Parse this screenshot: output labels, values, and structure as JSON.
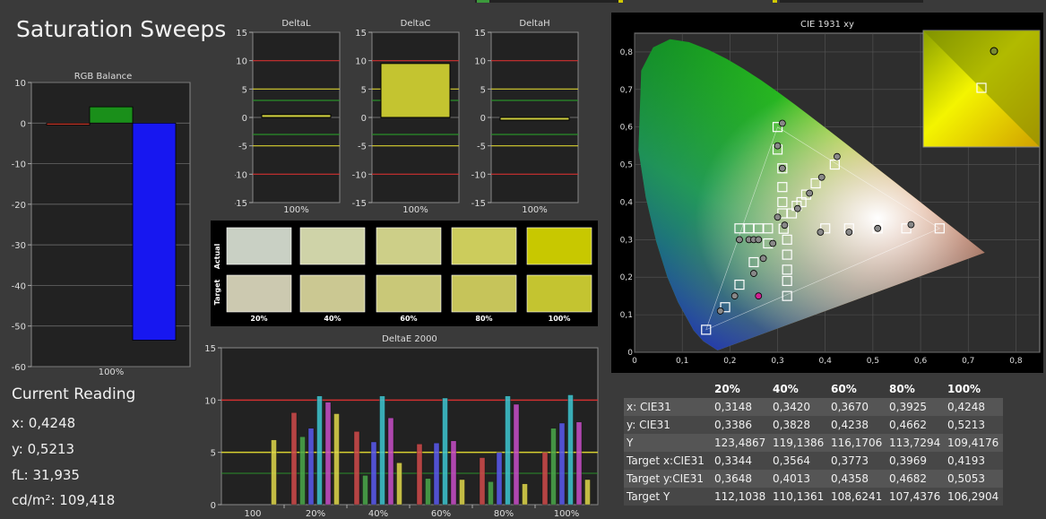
{
  "title": "Saturation Sweeps",
  "rgb_balance": {
    "title": "RGB Balance",
    "ticks": [
      "10",
      "0",
      "-10",
      "-20",
      "-30",
      "-40",
      "-50",
      "-60"
    ],
    "xlabel": "100%",
    "bars": [
      {
        "name": "red",
        "value": -0.5,
        "color": "#c0392b"
      },
      {
        "name": "green",
        "value": 4,
        "color": "#1a8f1a"
      },
      {
        "name": "blue",
        "value": -53.5,
        "color": "#1717f0"
      }
    ]
  },
  "delta_charts": [
    {
      "title": "DeltaL",
      "xlabel": "100%",
      "value": 0.5
    },
    {
      "title": "DeltaC",
      "xlabel": "100%",
      "value": 9.5
    },
    {
      "title": "DeltaH",
      "xlabel": "100%",
      "value": 0
    }
  ],
  "delta_ticks": [
    "15",
    "10",
    "5",
    "0",
    "-5",
    "-10",
    "-15"
  ],
  "swatches": {
    "actual_label": "Actual",
    "target_label": "Target",
    "labels": [
      "20%",
      "40%",
      "60%",
      "80%",
      "100%"
    ],
    "actual_colors": [
      "#c9d0c4",
      "#cfd3a8",
      "#cdcf88",
      "#cccc5c",
      "#c8c800"
    ],
    "target_colors": [
      "#ccc9b0",
      "#cbc892",
      "#c9c878",
      "#c6c45a",
      "#c4c430"
    ]
  },
  "deltae": {
    "title": "DeltaE 2000",
    "ticks": [
      "15",
      "10",
      "5",
      "0"
    ],
    "groups": [
      "100",
      "20%",
      "40%",
      "60%",
      "80%",
      "100%"
    ],
    "values": [
      [
        0,
        0,
        0,
        0,
        0,
        6.2
      ],
      [
        8.8,
        6.5,
        7.3,
        10.4,
        9.8,
        8.7
      ],
      [
        7.0,
        2.8,
        6.0,
        10.4,
        8.3,
        4.0
      ],
      [
        5.8,
        2.5,
        5.9,
        10.2,
        6.1,
        2.4
      ],
      [
        4.5,
        2.2,
        5.0,
        10.4,
        9.6,
        2.0
      ],
      [
        5.0,
        7.3,
        7.8,
        10.5,
        7.9,
        2.4
      ]
    ],
    "colors": [
      "#d04a4a",
      "#4aa84a",
      "#5a5af0",
      "#3ec6d0",
      "#c84ec8",
      "#e0d84a"
    ]
  },
  "cie": {
    "title": "CIE 1931 xy",
    "xticks": [
      "0",
      "0,1",
      "0,2",
      "0,3",
      "0,4",
      "0,5",
      "0,6",
      "0,7",
      "0,8"
    ],
    "yticks": [
      "0,8",
      "0,7",
      "0,6",
      "0,5",
      "0,4",
      "0,3",
      "0,2",
      "0,1",
      "0"
    ]
  },
  "current_reading": {
    "label": "Current Reading",
    "x": "x: 0,4248",
    "y": "y: 0,5213",
    "fl": "fL: 31,935",
    "cdm2": "cd/m²: 109,418"
  },
  "table": {
    "headers": [
      "",
      "20%",
      "40%",
      "60%",
      "80%",
      "100%"
    ],
    "rows": [
      [
        "x: CIE31",
        "0,3148",
        "0,3420",
        "0,3670",
        "0,3925",
        "0,4248"
      ],
      [
        "y: CIE31",
        "0,3386",
        "0,3828",
        "0,4238",
        "0,4662",
        "0,5213"
      ],
      [
        "Y",
        "123,4867",
        "119,1386",
        "116,1706",
        "113,7294",
        "109,4176"
      ],
      [
        "Target x:CIE31",
        "0,3344",
        "0,3564",
        "0,3773",
        "0,3969",
        "0,4193"
      ],
      [
        "Target y:CIE31",
        "0,3648",
        "0,4013",
        "0,4358",
        "0,4682",
        "0,5053"
      ],
      [
        "Target Y",
        "112,1038",
        "110,1361",
        "108,6241",
        "107,4376",
        "106,2904"
      ]
    ]
  }
}
